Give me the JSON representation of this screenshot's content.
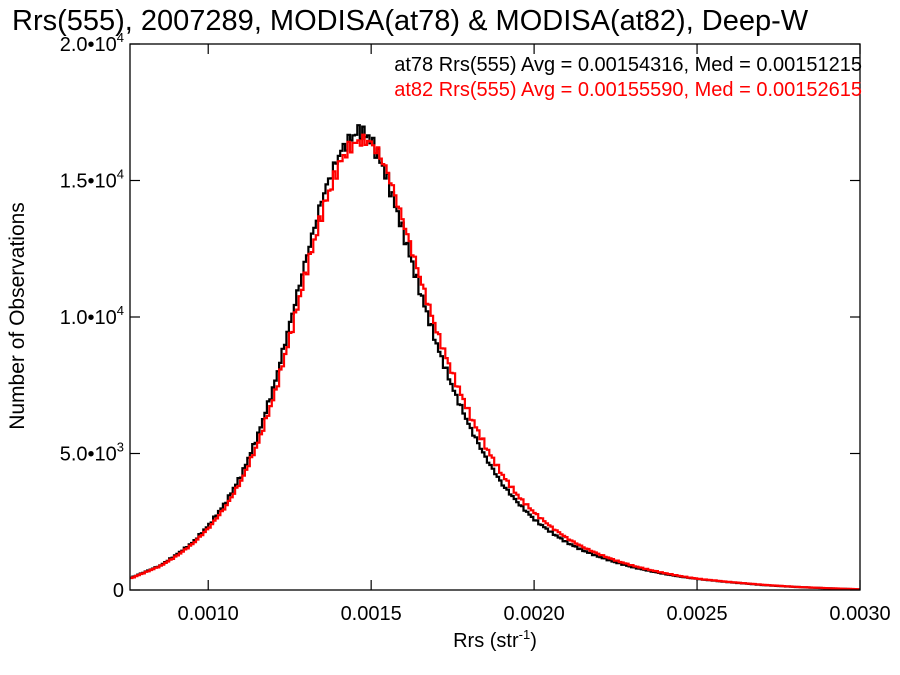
{
  "chart_data": {
    "type": "line",
    "title": "Rrs(555), 2007289, MODISA(at78) & MODISA(at82), Deep-W",
    "xlabel": "Rrs (str",
    "xlabel_sup": "-1",
    "xlabel_end": ")",
    "ylabel": "Number of Observations",
    "xlim": [
      0.00076,
      0.003
    ],
    "ylim": [
      0,
      20000
    ],
    "x_ticks": [
      {
        "value": 0.001,
        "label": "0.0010"
      },
      {
        "value": 0.0015,
        "label": "0.0015"
      },
      {
        "value": 0.002,
        "label": "0.0020"
      },
      {
        "value": 0.0025,
        "label": "0.0025"
      },
      {
        "value": 0.003,
        "label": "0.0030"
      }
    ],
    "y_ticks": [
      {
        "value": 0,
        "mant": "0",
        "exp": ""
      },
      {
        "value": 5000,
        "mant": "5.0•10",
        "exp": "3"
      },
      {
        "value": 10000,
        "mant": "1.0•10",
        "exp": "4"
      },
      {
        "value": 15000,
        "mant": "1.5•10",
        "exp": "4"
      },
      {
        "value": 20000,
        "mant": "2.0•10",
        "exp": "4"
      }
    ],
    "annotations": [
      {
        "text": "at78 Rrs(555) Avg = 0.00154316, Med = 0.00151215",
        "color": "#000000"
      },
      {
        "text": "at82 Rrs(555) Avg = 0.00155590, Med = 0.00152615",
        "color": "#ff0000"
      }
    ],
    "series": [
      {
        "color": "#000000",
        "x": [
          0.00076,
          0.0008,
          0.00085,
          0.0009,
          0.00095,
          0.001,
          0.00105,
          0.0011,
          0.00115,
          0.0012,
          0.00125,
          0.0013,
          0.00135,
          0.0014,
          0.00143,
          0.00146,
          0.00149,
          0.00152,
          0.00155,
          0.0016,
          0.00165,
          0.0017,
          0.00175,
          0.0018,
          0.00185,
          0.0019,
          0.00195,
          0.002,
          0.00205,
          0.0021,
          0.00215,
          0.0022,
          0.00225,
          0.0023,
          0.00235,
          0.0024,
          0.00245,
          0.0025,
          0.0026,
          0.0027,
          0.0028,
          0.0029,
          0.003
        ],
        "y": [
          450,
          650,
          900,
          1300,
          1750,
          2400,
          3200,
          4250,
          5700,
          7550,
          9900,
          12300,
          14500,
          16000,
          16500,
          16850,
          16600,
          15900,
          14900,
          12900,
          10800,
          8900,
          7300,
          5950,
          4800,
          3850,
          3150,
          2550,
          2100,
          1720,
          1430,
          1200,
          1000,
          830,
          700,
          580,
          480,
          400,
          280,
          180,
          110,
          60,
          20
        ]
      },
      {
        "color": "#ff0000",
        "x": [
          0.00076,
          0.0008,
          0.00085,
          0.0009,
          0.00095,
          0.001,
          0.00105,
          0.0011,
          0.00115,
          0.0012,
          0.00125,
          0.0013,
          0.00135,
          0.0014,
          0.00143,
          0.00146,
          0.00149,
          0.00152,
          0.00155,
          0.0016,
          0.00165,
          0.0017,
          0.00175,
          0.0018,
          0.00185,
          0.0019,
          0.00195,
          0.002,
          0.00205,
          0.0021,
          0.00215,
          0.0022,
          0.00225,
          0.0023,
          0.00235,
          0.0024,
          0.00245,
          0.0025,
          0.0026,
          0.0027,
          0.0028,
          0.0029,
          0.003
        ],
        "y": [
          430,
          630,
          880,
          1250,
          1700,
          2300,
          3050,
          4050,
          5400,
          7150,
          9400,
          11800,
          14000,
          15650,
          16200,
          16450,
          16450,
          16000,
          15200,
          13300,
          11300,
          9400,
          7800,
          6400,
          5200,
          4200,
          3400,
          2800,
          2300,
          1880,
          1550,
          1290,
          1070,
          890,
          740,
          610,
          500,
          410,
          290,
          190,
          115,
          65,
          25
        ]
      }
    ]
  }
}
